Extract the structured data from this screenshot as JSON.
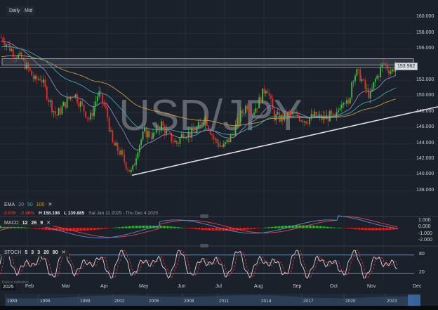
{
  "toolbar": {
    "timeframe_label": "Daily",
    "price_type_label": "Mid"
  },
  "watermark": "USD/JPY",
  "price_axis": {
    "ticks": [
      "160.000",
      "158.000",
      "156.000",
      "152.000",
      "150.000",
      "148.000",
      "146.000",
      "144.000",
      "142.000",
      "140.000",
      "138.000"
    ],
    "last_price": "153.962"
  },
  "ema_legend": {
    "label": "EMA",
    "periods": [
      "20",
      "50",
      "100"
    ],
    "colors": [
      "#8e86b8",
      "#3fa7b0",
      "#c79a3f"
    ],
    "close_glyph": "✕"
  },
  "stats": {
    "change": "-3.876",
    "change_pct": "-2.46%",
    "high_label": "H",
    "high": "158.198",
    "low_label": "L",
    "low": "139.885",
    "range": "Sat Jan 11 2025 - Thu Dec 4 2025"
  },
  "macd": {
    "label": "MACD",
    "params": [
      "12",
      "26",
      "9"
    ],
    "close_glyph": "✕",
    "ticks": [
      "1.000",
      "0.000",
      "-1.000",
      "-2.000"
    ]
  },
  "stoch": {
    "label": "STOCH",
    "params": [
      "5",
      "3",
      "3",
      "20",
      "80"
    ],
    "close_glyph": "✕",
    "ticks": [
      "80",
      "20"
    ]
  },
  "disclaimer": "Data is indicative",
  "time_axis": {
    "labels": [
      "2025",
      "Feb",
      "Mar",
      "Apr",
      "May",
      "Jun",
      "Jul",
      "Aug",
      "Sep",
      "Oct",
      "Nov",
      "Dec"
    ]
  },
  "navigator": {
    "years": [
      "1989",
      "1995",
      "1999",
      "2002",
      "2005",
      "2008",
      "2011",
      "2014",
      "2017",
      "2020",
      "2023"
    ]
  },
  "colors": {
    "background": "#1b212a",
    "up": "#3fbf3f",
    "down": "#e82a2a",
    "trendline": "#e0e0e0",
    "resistance_zone": "#9aa0a8"
  },
  "chart_data": {
    "type": "candlestick",
    "title": "USD/JPY",
    "timeframe": "Daily",
    "x_range": [
      "Jan 2025",
      "Dec 2025"
    ],
    "ylim": [
      137,
      161
    ],
    "y_ticks": [
      138,
      140,
      142,
      144,
      146,
      148,
      150,
      152,
      154,
      156,
      158,
      160
    ],
    "last_price": 153.962,
    "period_high": 158.198,
    "period_low": 139.885,
    "change": -3.876,
    "change_pct": -2.46,
    "monthly_closes_approx": {
      "x": [
        "Jan",
        "Feb",
        "Mar",
        "Apr",
        "May",
        "Jun",
        "Jul",
        "Aug",
        "Sep",
        "Oct",
        "Nov"
      ],
      "y": [
        156.5,
        152.0,
        149.5,
        143.0,
        144.5,
        144.0,
        147.0,
        147.0,
        147.7,
        152.5,
        154.0
      ]
    },
    "annotations": [
      {
        "type": "resistance_zone",
        "from": 154.0,
        "to": 154.8,
        "label": "resistance"
      },
      {
        "type": "trendline",
        "from": {
          "x": "Apr 22",
          "y": 140.0
        },
        "to": {
          "x": "Dec",
          "y": 148.6
        },
        "label": "rising support"
      }
    ],
    "indicators": {
      "ema": [
        20,
        50,
        100
      ],
      "macd": {
        "fast": 12,
        "slow": 26,
        "signal": 9,
        "ylim": [
          -2.5,
          1.5
        ]
      },
      "stoch": {
        "k": 5,
        "d": 3,
        "smooth": 3,
        "lower": 20,
        "upper": 80
      }
    }
  }
}
